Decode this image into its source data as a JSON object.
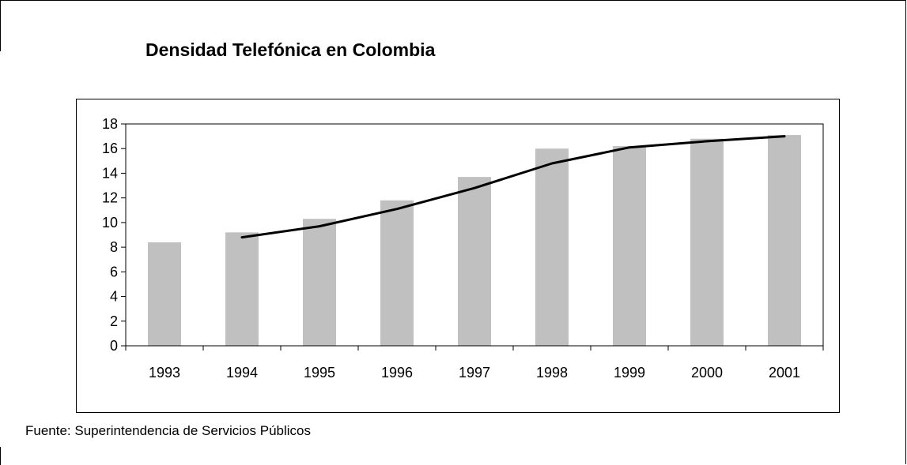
{
  "title": "Densidad Telefónica en Colombia",
  "source": "Fuente: Superintendencia de Servicios Públicos",
  "colors": {
    "bar": "#c0c0c0",
    "line": "#000000",
    "axis": "#000000"
  },
  "chart_data": {
    "type": "bar",
    "title": "Densidad Telefónica en Colombia",
    "xlabel": "",
    "ylabel": "",
    "categories": [
      "1993",
      "1994",
      "1995",
      "1996",
      "1997",
      "1998",
      "1999",
      "2000",
      "2001"
    ],
    "series": [
      {
        "type": "bar",
        "values": [
          8.4,
          9.2,
          10.3,
          11.8,
          13.7,
          16.0,
          16.2,
          16.8,
          17.1
        ]
      },
      {
        "type": "line",
        "values": [
          null,
          8.8,
          9.7,
          11.1,
          12.8,
          14.8,
          16.1,
          16.6,
          17.0
        ]
      }
    ],
    "ylim": [
      0,
      18
    ],
    "yticks": [
      0,
      2,
      4,
      6,
      8,
      10,
      12,
      14,
      16,
      18
    ],
    "grid": false,
    "legend": "none"
  }
}
